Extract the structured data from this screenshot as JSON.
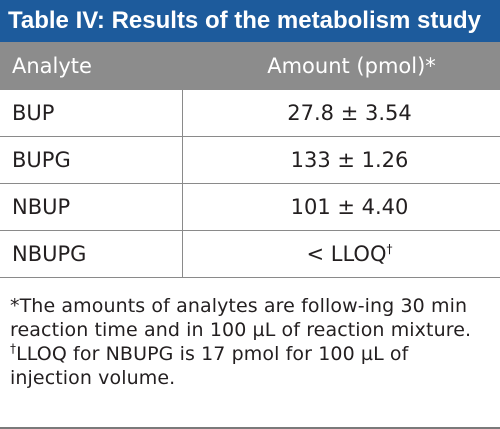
{
  "title": "Table IV: Results of the metabolism study",
  "columns": {
    "analyte": "Analyte",
    "amount": "Amount (pmol)*"
  },
  "rows": [
    {
      "analyte": "BUP",
      "amount": "27.8 ± 3.54",
      "mark": ""
    },
    {
      "analyte": "BUPG",
      "amount": "133 ± 1.26",
      "mark": ""
    },
    {
      "analyte": "NBUP",
      "amount": "101 ± 4.40",
      "mark": ""
    },
    {
      "analyte": "NBUPG",
      "amount": "< LLOQ",
      "mark": "†"
    }
  ],
  "footnotes": {
    "asterisk": "*The amounts of analytes are follow-ing 30 min reaction time and in 100 µL of reaction mixture.",
    "dagger_mark": "†",
    "dagger": "LLOQ for NBUPG is 17 pmol for 100 µL of injection volume."
  },
  "colors": {
    "title_bg": "#1d5b9c",
    "header_bg": "#8c8c8c",
    "rule": "#8a8a8a"
  }
}
